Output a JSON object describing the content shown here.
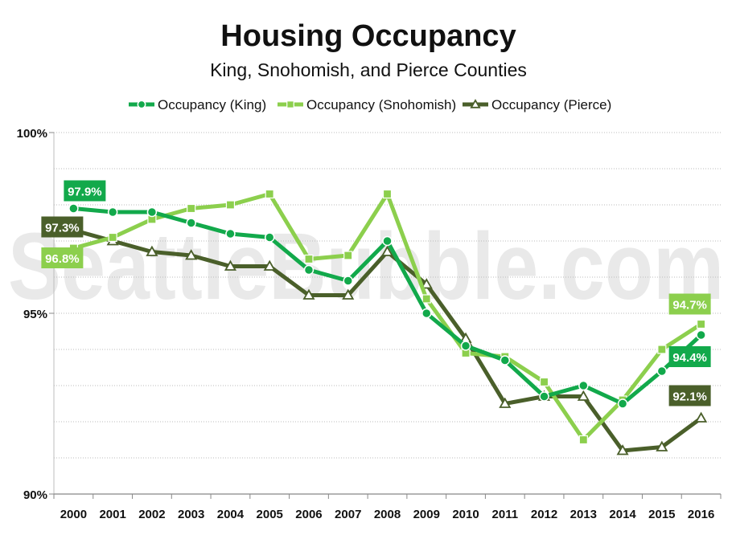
{
  "chart_data": {
    "type": "line",
    "title": "Housing Occupancy",
    "subtitle": "King, Snohomish, and Pierce Counties",
    "watermark": "SeattleBubble.com",
    "x": [
      "2000",
      "2001",
      "2002",
      "2003",
      "2004",
      "2005",
      "2006",
      "2007",
      "2008",
      "2009",
      "2010",
      "2011",
      "2012",
      "2013",
      "2014",
      "2015",
      "2016"
    ],
    "ylim": [
      90,
      100
    ],
    "yticks": [
      90,
      95,
      100
    ],
    "ytick_labels": [
      "90%",
      "95%",
      "100%"
    ],
    "grid": true,
    "legend_position": "top",
    "series": [
      {
        "name": "Occupancy (King)",
        "marker": "circle",
        "color": "#12a94b",
        "values": [
          97.9,
          97.8,
          97.8,
          97.5,
          97.2,
          97.1,
          96.2,
          95.9,
          97.0,
          95.0,
          94.1,
          93.7,
          92.7,
          93.0,
          92.5,
          93.4,
          94.4
        ],
        "end_labels": {
          "first": "97.9%",
          "last": "94.4%"
        }
      },
      {
        "name": "Occupancy (Snohomish)",
        "marker": "square",
        "color": "#8ccf4d",
        "values": [
          96.8,
          97.1,
          97.6,
          97.9,
          98.0,
          98.3,
          96.5,
          96.6,
          98.3,
          95.4,
          93.9,
          93.8,
          93.1,
          91.5,
          92.6,
          94.0,
          94.7
        ],
        "end_labels": {
          "first": "96.8%",
          "last": "94.7%"
        }
      },
      {
        "name": "Occupancy (Pierce)",
        "marker": "triangle",
        "color": "#4a5f2a",
        "values": [
          97.3,
          97.0,
          96.7,
          96.6,
          96.3,
          96.3,
          95.5,
          95.5,
          96.7,
          95.8,
          94.3,
          92.5,
          92.7,
          92.7,
          91.2,
          91.3,
          92.1
        ],
        "end_labels": {
          "first": "97.3%",
          "last": "92.1%"
        }
      }
    ]
  }
}
